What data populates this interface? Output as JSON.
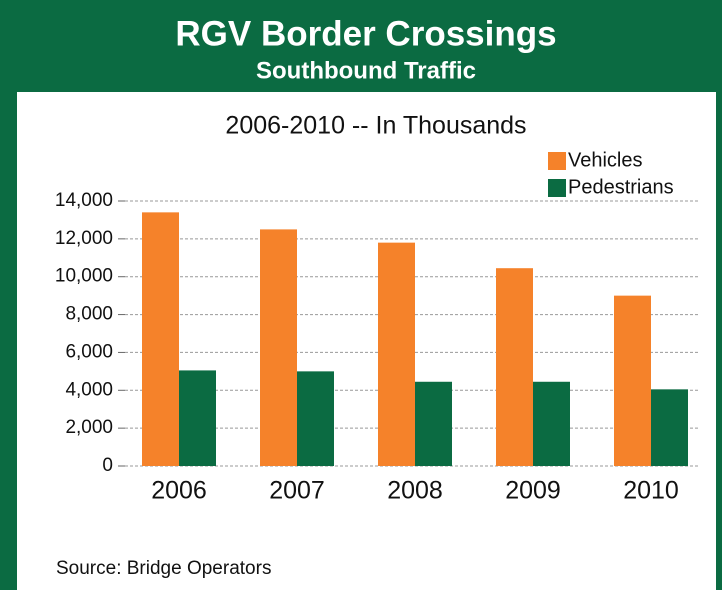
{
  "chart_data": {
    "type": "bar",
    "title": "RGV Border Crossings",
    "subtitle": "Southbound Traffic",
    "chart_title": "2006-2010 --  In Thousands",
    "source": "Source: Bridge Operators",
    "categories": [
      "2006",
      "2007",
      "2008",
      "2009",
      "2010"
    ],
    "series": [
      {
        "name": "Vehicles",
        "color": "#f5822a",
        "values": [
          13400,
          12500,
          11800,
          10450,
          9000
        ]
      },
      {
        "name": "Pedestrians",
        "color": "#0b6b42",
        "values": [
          5050,
          5000,
          4450,
          4450,
          4050
        ]
      }
    ],
    "ylim": [
      0,
      14000
    ],
    "yticks": [
      0,
      {
        "value": 2000,
        "label": "2,000"
      },
      {
        "value": 4000,
        "label": "4,000"
      },
      {
        "value": 6000,
        "label": "6,000"
      },
      {
        "value": 8000,
        "label": "8,000"
      },
      {
        "value": 10000,
        "label": "10,000"
      },
      {
        "value": 12000,
        "label": "12,000"
      },
      {
        "value": 14000,
        "label": "14,000"
      }
    ],
    "grid": true,
    "legend": "upper right"
  }
}
